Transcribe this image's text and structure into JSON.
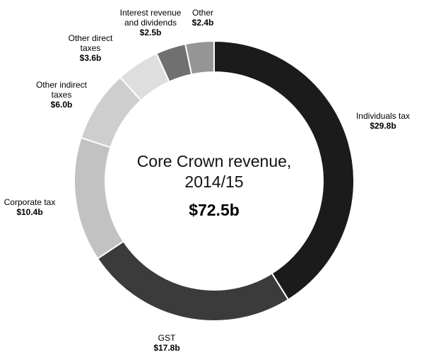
{
  "chart_data": {
    "type": "pie",
    "title_line1": "Core Crown revenue,",
    "title_line2": "2014/15",
    "total_label": "$72.5b",
    "slices": [
      {
        "label_lines": [
          "Individuals tax"
        ],
        "value": 29.8,
        "value_label": "$29.8b",
        "color": "#1b1b1b"
      },
      {
        "label_lines": [
          "GST"
        ],
        "value": 17.8,
        "value_label": "$17.8b",
        "color": "#3b3b3b"
      },
      {
        "label_lines": [
          "Corporate tax"
        ],
        "value": 10.4,
        "value_label": "$10.4b",
        "color": "#c2c2c2"
      },
      {
        "label_lines": [
          "Other indirect",
          "taxes"
        ],
        "value": 6.0,
        "value_label": "$6.0b",
        "color": "#cecece"
      },
      {
        "label_lines": [
          "Other direct",
          "taxes"
        ],
        "value": 3.6,
        "value_label": "$3.6b",
        "color": "#dedede"
      },
      {
        "label_lines": [
          "Interest revenue",
          "and dividends"
        ],
        "value": 2.5,
        "value_label": "$2.5b",
        "color": "#707070"
      },
      {
        "label_lines": [
          "Other"
        ],
        "value": 2.4,
        "value_label": "$2.4b",
        "color": "#959595"
      }
    ]
  }
}
